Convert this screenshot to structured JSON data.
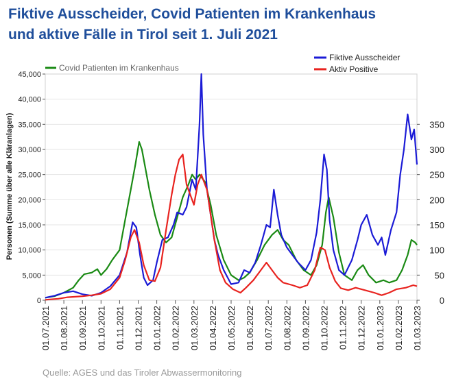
{
  "title": {
    "line1": "Fiktive Ausscheider, Covid Patienten im Krankenhaus",
    "line2": "und aktive Fälle in Tirol seit 1. Juli 2021"
  },
  "source": "Quelle: AGES und das Tiroler Abwassermonitoring",
  "colors": {
    "blue": "#1b1bd6",
    "red": "#e8231f",
    "green": "#1a8a14",
    "title": "#1f4e9b"
  },
  "chart_data": {
    "type": "line",
    "title": "Fiktive Ausscheider, Covid Patienten im Krankenhaus und aktive Fälle in Tirol seit 1. Juli 2021",
    "ylabel": "Personen (Summe über alle Kläranlagen)",
    "ylabel_right": "",
    "ylim": [
      0,
      45000
    ],
    "ylim_right": [
      0,
      450
    ],
    "y_ticks": [
      "0",
      "5,000",
      "10,000",
      "15,000",
      "20,000",
      "25,000",
      "30,000",
      "35,000",
      "40,000",
      "45,000"
    ],
    "y_ticks_right": [
      "0",
      "50",
      "100",
      "150",
      "200",
      "250",
      "300",
      "350"
    ],
    "x_ticks": [
      "01.07.2021",
      "01.08.2021",
      "01.09.2021",
      "01.10.2021",
      "01.11.2021",
      "01.12.2021",
      "01.01.2022",
      "01.02.2022",
      "01.03.2022",
      "01.04.2022",
      "01.05.2022",
      "01.06.2022",
      "01.07.2022",
      "01.08.2022",
      "01.09.2022",
      "01.10.2022",
      "01.11.2022",
      "01.12.2022",
      "01.01.2023",
      "01.02.2023",
      "01.03.2023"
    ],
    "legend": {
      "placement": "top",
      "left": "Covid Patienten im Krankenhaus",
      "right": [
        "Fiktive Ausscheider",
        "Aktiv Positive"
      ]
    },
    "series": [
      {
        "name": "Fiktive Ausscheider",
        "axis": "left",
        "color": "#1b1bd6",
        "points": [
          [
            0,
            500
          ],
          [
            0.5,
            900
          ],
          [
            1,
            1500
          ],
          [
            1.5,
            1800
          ],
          [
            2,
            1200
          ],
          [
            2.5,
            900
          ],
          [
            3,
            1500
          ],
          [
            3.5,
            2800
          ],
          [
            4,
            5000
          ],
          [
            4.4,
            9500
          ],
          [
            4.7,
            15500
          ],
          [
            4.9,
            14500
          ],
          [
            5.1,
            9000
          ],
          [
            5.3,
            4500
          ],
          [
            5.5,
            3000
          ],
          [
            5.8,
            4000
          ],
          [
            6,
            7500
          ],
          [
            6.3,
            12000
          ],
          [
            6.6,
            12500
          ],
          [
            6.9,
            15000
          ],
          [
            7.1,
            17500
          ],
          [
            7.4,
            17000
          ],
          [
            7.6,
            18500
          ],
          [
            7.9,
            24000
          ],
          [
            8.1,
            22000
          ],
          [
            8.3,
            35000
          ],
          [
            8.4,
            45000
          ],
          [
            8.5,
            33000
          ],
          [
            8.7,
            22000
          ],
          [
            8.9,
            17000
          ],
          [
            9.1,
            12000
          ],
          [
            9.3,
            9000
          ],
          [
            9.6,
            6000
          ],
          [
            10,
            3200
          ],
          [
            10.4,
            3500
          ],
          [
            10.7,
            6000
          ],
          [
            11,
            5500
          ],
          [
            11.3,
            7500
          ],
          [
            11.6,
            11000
          ],
          [
            11.9,
            15000
          ],
          [
            12.1,
            14500
          ],
          [
            12.3,
            22000
          ],
          [
            12.5,
            17000
          ],
          [
            12.7,
            13000
          ],
          [
            13,
            10500
          ],
          [
            13.3,
            9000
          ],
          [
            13.6,
            7500
          ],
          [
            14,
            6000
          ],
          [
            14.3,
            8000
          ],
          [
            14.6,
            13500
          ],
          [
            14.8,
            20000
          ],
          [
            15,
            29000
          ],
          [
            15.15,
            26000
          ],
          [
            15.3,
            16000
          ],
          [
            15.5,
            10000
          ],
          [
            15.8,
            6000
          ],
          [
            16.1,
            5000
          ],
          [
            16.5,
            8000
          ],
          [
            16.8,
            12000
          ],
          [
            17,
            15000
          ],
          [
            17.3,
            17000
          ],
          [
            17.6,
            13000
          ],
          [
            17.9,
            11000
          ],
          [
            18.1,
            12500
          ],
          [
            18.3,
            9000
          ],
          [
            18.6,
            14000
          ],
          [
            18.9,
            17500
          ],
          [
            19.1,
            25000
          ],
          [
            19.3,
            30000
          ],
          [
            19.5,
            37000
          ],
          [
            19.7,
            32000
          ],
          [
            19.85,
            34000
          ],
          [
            20,
            27000
          ]
        ]
      },
      {
        "name": "Aktiv Positive",
        "axis": "left",
        "color": "#e8231f",
        "points": [
          [
            0,
            100
          ],
          [
            0.7,
            300
          ],
          [
            1.2,
            600
          ],
          [
            1.6,
            700
          ],
          [
            2,
            800
          ],
          [
            2.5,
            1000
          ],
          [
            3,
            1300
          ],
          [
            3.5,
            2200
          ],
          [
            4,
            4500
          ],
          [
            4.3,
            8000
          ],
          [
            4.6,
            12500
          ],
          [
            4.8,
            14000
          ],
          [
            5.05,
            11500
          ],
          [
            5.3,
            7000
          ],
          [
            5.6,
            4000
          ],
          [
            5.9,
            3800
          ],
          [
            6.2,
            6500
          ],
          [
            6.5,
            14000
          ],
          [
            6.8,
            21000
          ],
          [
            7,
            25000
          ],
          [
            7.2,
            28000
          ],
          [
            7.4,
            29000
          ],
          [
            7.6,
            23000
          ],
          [
            7.8,
            21000
          ],
          [
            8,
            19000
          ],
          [
            8.2,
            23000
          ],
          [
            8.4,
            25000
          ],
          [
            8.7,
            22000
          ],
          [
            8.9,
            17000
          ],
          [
            9.1,
            12000
          ],
          [
            9.4,
            6000
          ],
          [
            9.7,
            3500
          ],
          [
            10.1,
            2200
          ],
          [
            10.5,
            1500
          ],
          [
            10.8,
            2500
          ],
          [
            11.2,
            4000
          ],
          [
            11.6,
            6000
          ],
          [
            11.9,
            7500
          ],
          [
            12.2,
            6000
          ],
          [
            12.5,
            4500
          ],
          [
            12.8,
            3500
          ],
          [
            13.3,
            3000
          ],
          [
            13.7,
            2500
          ],
          [
            14.1,
            3000
          ],
          [
            14.5,
            6000
          ],
          [
            14.8,
            10500
          ],
          [
            15.05,
            10000
          ],
          [
            15.3,
            6500
          ],
          [
            15.6,
            3800
          ],
          [
            15.9,
            2400
          ],
          [
            16.3,
            2000
          ],
          [
            16.7,
            2500
          ],
          [
            17.2,
            2000
          ],
          [
            17.7,
            1500
          ],
          [
            18.1,
            1000
          ],
          [
            18.5,
            1500
          ],
          [
            18.9,
            2200
          ],
          [
            19.4,
            2500
          ],
          [
            19.8,
            3000
          ],
          [
            20,
            2800
          ]
        ]
      },
      {
        "name": "Covid Patienten im Krankenhaus",
        "axis": "right",
        "color": "#1a8a14",
        "points": [
          [
            0,
            5
          ],
          [
            0.5,
            8
          ],
          [
            1,
            15
          ],
          [
            1.5,
            25
          ],
          [
            1.8,
            40
          ],
          [
            2.1,
            52
          ],
          [
            2.5,
            55
          ],
          [
            2.8,
            62
          ],
          [
            3,
            50
          ],
          [
            3.3,
            62
          ],
          [
            3.6,
            80
          ],
          [
            4,
            100
          ],
          [
            4.3,
            160
          ],
          [
            4.6,
            220
          ],
          [
            4.85,
            270
          ],
          [
            5.05,
            315
          ],
          [
            5.2,
            300
          ],
          [
            5.35,
            270
          ],
          [
            5.6,
            220
          ],
          [
            5.9,
            170
          ],
          [
            6.2,
            130
          ],
          [
            6.5,
            115
          ],
          [
            6.8,
            125
          ],
          [
            7.1,
            165
          ],
          [
            7.4,
            205
          ],
          [
            7.7,
            230
          ],
          [
            7.9,
            250
          ],
          [
            8.1,
            240
          ],
          [
            8.3,
            250
          ],
          [
            8.6,
            235
          ],
          [
            8.9,
            190
          ],
          [
            9.2,
            130
          ],
          [
            9.6,
            80
          ],
          [
            10,
            50
          ],
          [
            10.4,
            40
          ],
          [
            10.7,
            45
          ],
          [
            11,
            55
          ],
          [
            11.4,
            80
          ],
          [
            11.8,
            110
          ],
          [
            12.2,
            130
          ],
          [
            12.5,
            140
          ],
          [
            12.8,
            120
          ],
          [
            13.1,
            110
          ],
          [
            13.5,
            80
          ],
          [
            13.9,
            60
          ],
          [
            14.3,
            50
          ],
          [
            14.6,
            70
          ],
          [
            14.9,
            110
          ],
          [
            15.1,
            175
          ],
          [
            15.25,
            205
          ],
          [
            15.5,
            165
          ],
          [
            15.8,
            95
          ],
          [
            16.1,
            50
          ],
          [
            16.5,
            40
          ],
          [
            16.8,
            60
          ],
          [
            17.1,
            70
          ],
          [
            17.4,
            50
          ],
          [
            17.8,
            35
          ],
          [
            18.2,
            40
          ],
          [
            18.5,
            35
          ],
          [
            18.9,
            40
          ],
          [
            19.2,
            60
          ],
          [
            19.5,
            90
          ],
          [
            19.7,
            120
          ],
          [
            19.9,
            115
          ],
          [
            20,
            110
          ]
        ]
      }
    ]
  }
}
